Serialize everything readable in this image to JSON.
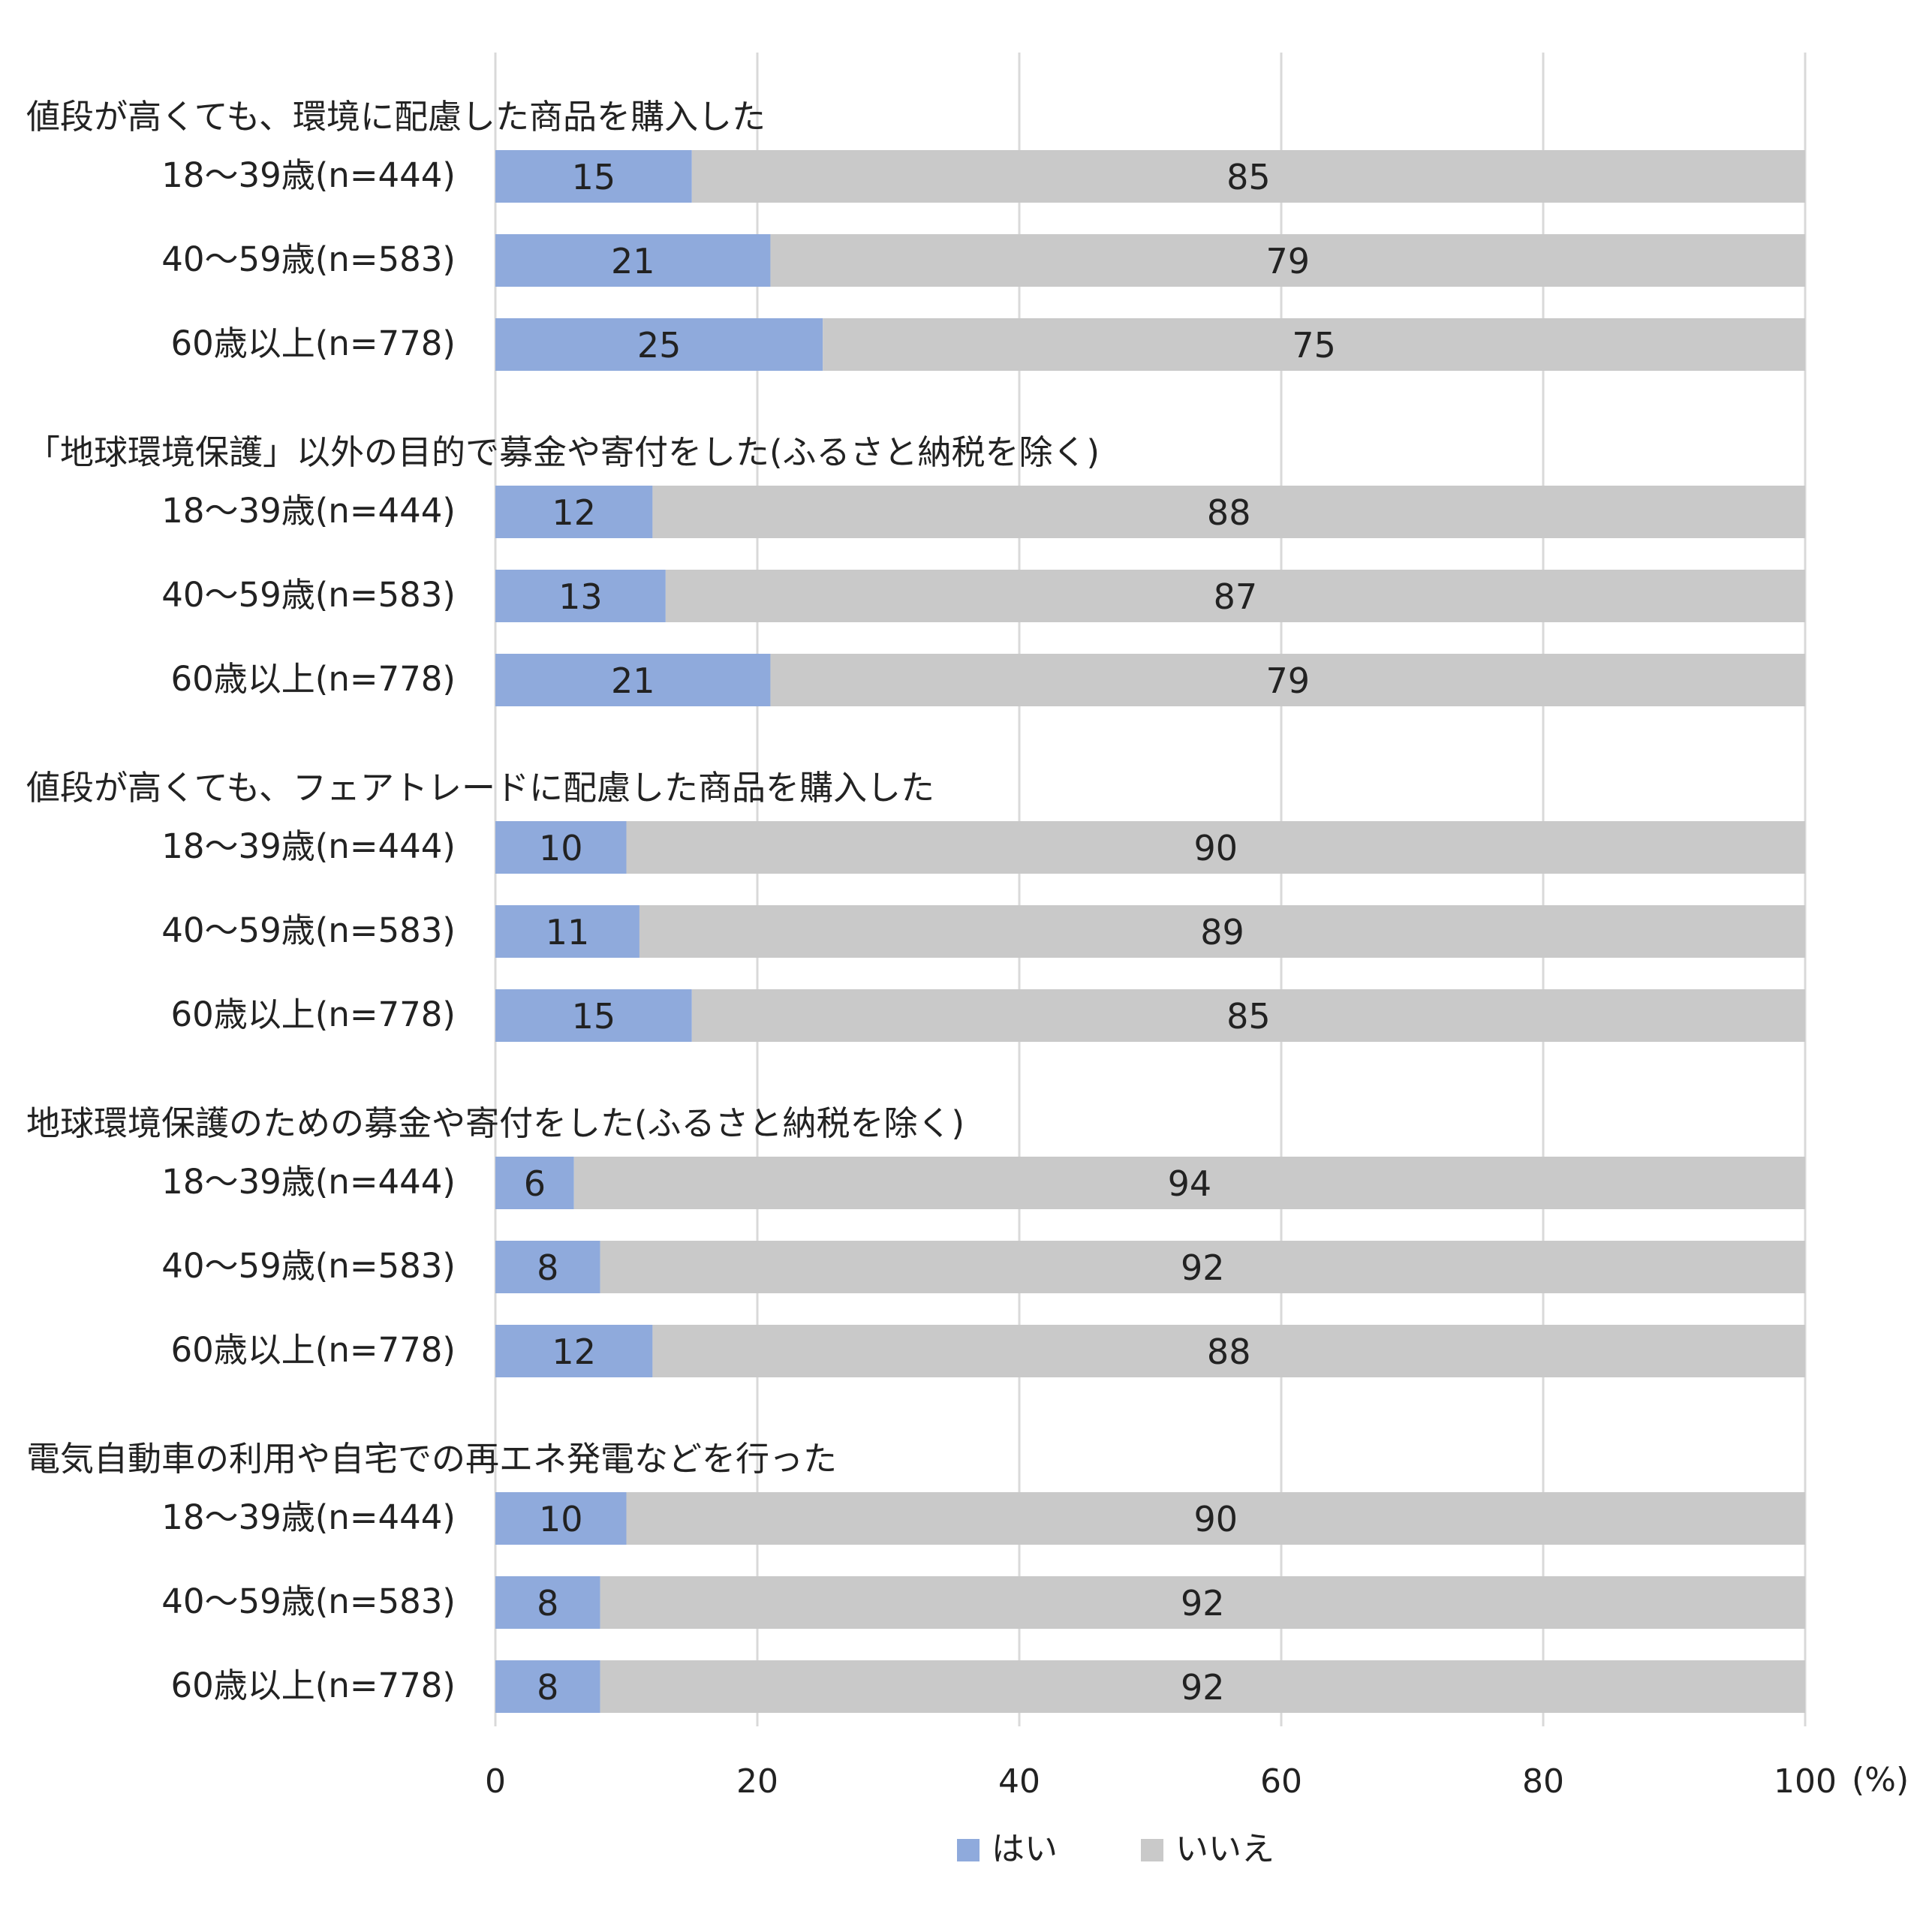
{
  "chart_data": {
    "type": "bar",
    "orientation": "horizontal",
    "stacked": true,
    "x_unit": "(%)",
    "xlim": [
      0,
      100
    ],
    "x_ticks": [
      "0",
      "20",
      "40",
      "60",
      "80",
      "100"
    ],
    "grid": true,
    "legend_position": "bottom",
    "series": [
      {
        "name": "はい",
        "color": "#8faadc"
      },
      {
        "name": "いいえ",
        "color": "#c9c9c9"
      }
    ],
    "groups": [
      {
        "title": "値段が高くても、環境に配慮した商品を購入した",
        "rows": [
          {
            "label": "18～39歳(n=444)",
            "values": [
              15,
              85
            ],
            "labels": [
              "15",
              "85"
            ]
          },
          {
            "label": "40～59歳(n=583)",
            "values": [
              21,
              79
            ],
            "labels": [
              "21",
              "79"
            ]
          },
          {
            "label": "60歳以上(n=778)",
            "values": [
              25,
              75
            ],
            "labels": [
              "25",
              "75"
            ]
          }
        ]
      },
      {
        "title": "「地球環境保護」以外の目的で募金や寄付をした(ふるさと納税を除く)",
        "rows": [
          {
            "label": "18～39歳(n=444)",
            "values": [
              12,
              88
            ],
            "labels": [
              "12",
              "88"
            ]
          },
          {
            "label": "40～59歳(n=583)",
            "values": [
              13,
              87
            ],
            "labels": [
              "13",
              "87"
            ]
          },
          {
            "label": "60歳以上(n=778)",
            "values": [
              21,
              79
            ],
            "labels": [
              "21",
              "79"
            ]
          }
        ]
      },
      {
        "title": "値段が高くても、フェアトレードに配慮した商品を購入した",
        "rows": [
          {
            "label": "18～39歳(n=444)",
            "values": [
              10,
              90
            ],
            "labels": [
              "10",
              "90"
            ]
          },
          {
            "label": "40～59歳(n=583)",
            "values": [
              11,
              89
            ],
            "labels": [
              "11",
              "89"
            ]
          },
          {
            "label": "60歳以上(n=778)",
            "values": [
              15,
              85
            ],
            "labels": [
              "15",
              "85"
            ]
          }
        ]
      },
      {
        "title": "地球環境保護のための募金や寄付をした(ふるさと納税を除く)",
        "rows": [
          {
            "label": "18～39歳(n=444)",
            "values": [
              6,
              94
            ],
            "labels": [
              "6",
              "94"
            ]
          },
          {
            "label": "40～59歳(n=583)",
            "values": [
              8,
              92
            ],
            "labels": [
              "8",
              "92"
            ]
          },
          {
            "label": "60歳以上(n=778)",
            "values": [
              12,
              88
            ],
            "labels": [
              "12",
              "88"
            ]
          }
        ]
      },
      {
        "title": "電気自動車の利用や自宅での再エネ発電などを行った",
        "rows": [
          {
            "label": "18～39歳(n=444)",
            "values": [
              10,
              90
            ],
            "labels": [
              "10",
              "90"
            ]
          },
          {
            "label": "40～59歳(n=583)",
            "values": [
              8,
              92
            ],
            "labels": [
              "8",
              "92"
            ]
          },
          {
            "label": "60歳以上(n=778)",
            "values": [
              8,
              92
            ],
            "labels": [
              "8",
              "92"
            ]
          }
        ]
      }
    ]
  }
}
